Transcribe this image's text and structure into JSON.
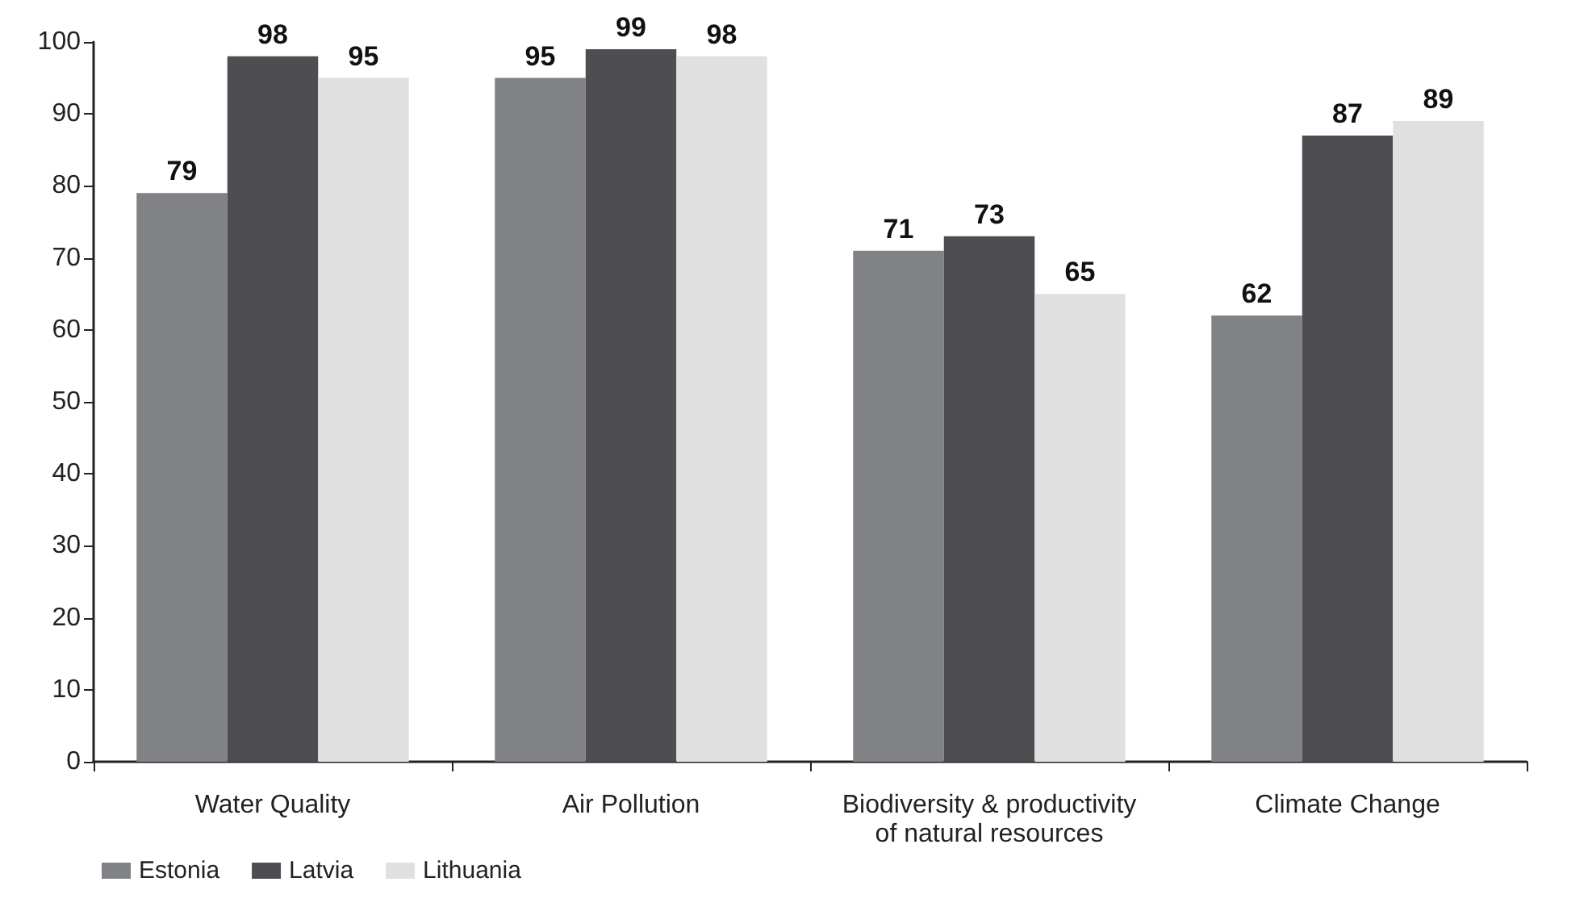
{
  "chart_data": {
    "type": "bar",
    "categories": [
      "Water Quality",
      "Air Pollution",
      "Biodiversity & productivity\nof natural resources",
      "Climate Change"
    ],
    "series": [
      {
        "name": "Estonia",
        "color": "#808285",
        "values": [
          79,
          95,
          71,
          62
        ]
      },
      {
        "name": "Latvia",
        "color": "#4d4d52",
        "values": [
          98,
          99,
          73,
          87
        ]
      },
      {
        "name": "Lithuania",
        "color": "#e0e0e1",
        "values": [
          95,
          98,
          65,
          89
        ]
      }
    ],
    "ylim": [
      0,
      100
    ],
    "yticks": [
      0,
      10,
      20,
      30,
      40,
      50,
      60,
      70,
      80,
      90,
      100
    ],
    "grid": false,
    "legend": "bottom left",
    "data_labels": true
  }
}
